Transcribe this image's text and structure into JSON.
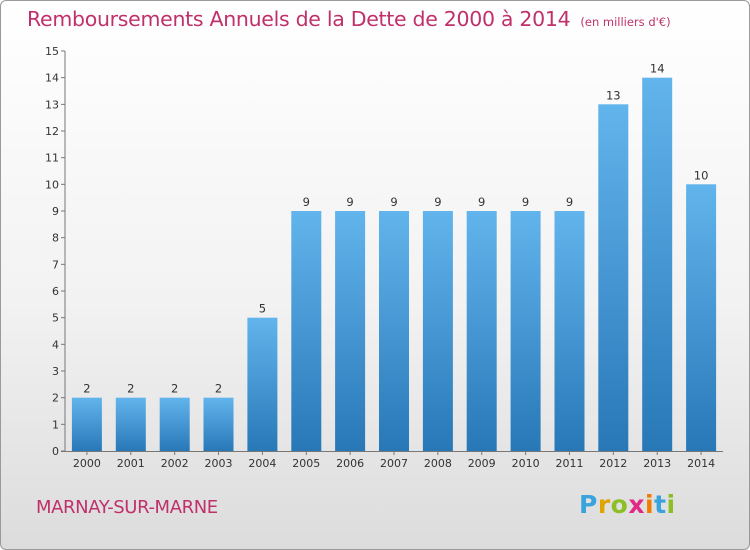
{
  "title": "Remboursements Annuels de la Dette de 2000 à 2014",
  "title_unit": "(en milliers d'€)",
  "commune": "MARNAY-SUR-MARNE",
  "logo": {
    "letters": [
      "P",
      "r",
      "o",
      "x",
      "i",
      "t",
      "i"
    ],
    "colors": [
      "#3aa2dc",
      "#e0a400",
      "#8cbf26",
      "#e02a86",
      "#f07d00",
      "#3aa2dc",
      "#8cbf26"
    ]
  },
  "colors": {
    "title": "#c0306a",
    "bar_top": "#62b4ec",
    "bar_bottom": "#2878b8"
  },
  "chart_data": {
    "type": "bar",
    "title": "Remboursements Annuels de la Dette de 2000 à 2014",
    "categories": [
      "2000",
      "2001",
      "2002",
      "2003",
      "2004",
      "2005",
      "2006",
      "2007",
      "2008",
      "2009",
      "2010",
      "2011",
      "2012",
      "2013",
      "2014"
    ],
    "values": [
      2,
      2,
      2,
      2,
      5,
      9,
      9,
      9,
      9,
      9,
      9,
      9,
      13,
      14,
      10
    ],
    "data_labels": [
      "2",
      "2",
      "2",
      "2",
      "5",
      "9",
      "9",
      "9",
      "9",
      "9",
      "9",
      "9",
      "13",
      "14",
      "10"
    ],
    "y_ticks": [
      "0",
      "1",
      "2",
      "3",
      "4",
      "5",
      "6",
      "7",
      "8",
      "9",
      "10",
      "11",
      "12",
      "13",
      "14",
      "15"
    ],
    "xlabel": "",
    "ylabel": "",
    "ylim": [
      0,
      15
    ],
    "grid": false,
    "legend": "none"
  }
}
